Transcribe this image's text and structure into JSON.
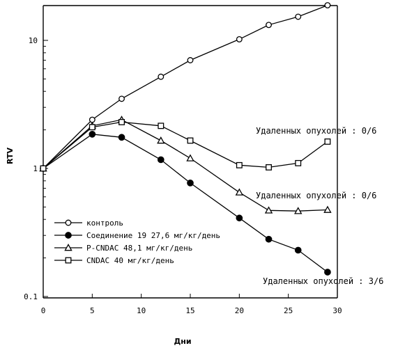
{
  "chart_data": {
    "type": "line",
    "xlabel": "Дни",
    "ylabel": "RTV",
    "y_scale": "log",
    "xlim": [
      0,
      30
    ],
    "ylim": [
      0.1,
      22
    ],
    "x_ticks": [
      "0",
      "5",
      "10",
      "15",
      "20",
      "25",
      "30"
    ],
    "y_ticks": [
      "0.1",
      "1",
      "10"
    ],
    "series": [
      {
        "name": "контроль",
        "marker": "open-circle",
        "x": [
          0,
          5,
          8,
          12,
          15,
          20,
          23,
          26,
          29
        ],
        "y": [
          1.0,
          2.4,
          3.5,
          5.2,
          7.0,
          10.2,
          13.2,
          15.3,
          18.8
        ]
      },
      {
        "name": "Соединение 19 27,6 мг/кг/день",
        "marker": "filled-circle",
        "x": [
          0,
          5,
          8,
          12,
          15,
          20,
          23,
          26,
          29
        ],
        "y": [
          1.0,
          1.85,
          1.75,
          1.17,
          0.77,
          0.41,
          0.28,
          0.23,
          0.155
        ]
      },
      {
        "name": "P-CNDAC 48,1 мг/кг/день",
        "marker": "open-triangle",
        "x": [
          0,
          5,
          8,
          12,
          15,
          20,
          23,
          26,
          29
        ],
        "y": [
          1.0,
          2.15,
          2.4,
          1.65,
          1.2,
          0.65,
          0.47,
          0.465,
          0.475
        ]
      },
      {
        "name": "CNDAC 40 мг/кг/день",
        "marker": "open-square",
        "x": [
          0,
          5,
          8,
          12,
          15,
          20,
          23,
          26,
          29
        ],
        "y": [
          1.0,
          2.1,
          2.3,
          2.15,
          1.65,
          1.06,
          1.02,
          1.1,
          1.62
        ]
      }
    ],
    "annotations": [
      "Удаленных опухолей : 0/6",
      "Удаленных опухолей : 0/6",
      "Удаленных опухолей : 3/6"
    ],
    "grid": false,
    "legend_placement": "bottom-left"
  }
}
